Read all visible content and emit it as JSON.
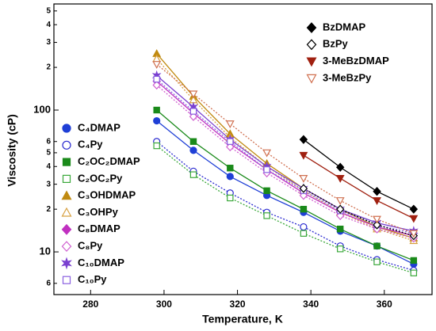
{
  "chart_data": {
    "type": "scatter",
    "xlabel": "Temperature, K",
    "ylabel": "Viscosity (cP)",
    "xlim": [
      270,
      373
    ],
    "xticks": [
      280,
      300,
      320,
      340,
      360
    ],
    "ylim": [
      5,
      560
    ],
    "log_y": true,
    "yticks": [
      {
        "value": 6,
        "label": "6"
      },
      10,
      {
        "value": 20,
        "label": "2"
      },
      {
        "value": 30,
        "label": "3"
      },
      {
        "value": 40,
        "label": "4"
      },
      {
        "value": 50,
        "label": "5"
      },
      {
        "value": 60,
        "label": "6"
      },
      100,
      {
        "value": 200,
        "label": "2"
      },
      {
        "value": 300,
        "label": "3"
      },
      {
        "value": 400,
        "label": "4"
      },
      {
        "value": 500,
        "label": "5"
      }
    ],
    "x": [
      298,
      308,
      318,
      328,
      338,
      348,
      358,
      368
    ],
    "series": [
      {
        "name": "C₄DMAP",
        "color": "#1f3fd6",
        "marker": "circle",
        "filled": true,
        "values": [
          84,
          52,
          34,
          25,
          19,
          14,
          11,
          8.2
        ]
      },
      {
        "name": "C₄Py",
        "color": "#2a2ad0",
        "marker": "circle",
        "filled": false,
        "values": [
          60,
          37,
          26,
          19,
          15,
          11,
          8.8,
          7.4
        ]
      },
      {
        "name": "C₂OC₂DMAP",
        "color": "#1a8a1a",
        "marker": "square",
        "filled": true,
        "values": [
          100,
          60,
          39,
          27,
          20,
          14.5,
          11,
          8.7
        ]
      },
      {
        "name": "C₂OC₂Py",
        "color": "#3aa83a",
        "marker": "square",
        "filled": false,
        "values": [
          56,
          35,
          24,
          18,
          13.5,
          10.5,
          8.5,
          7.1
        ]
      },
      {
        "name": "C₃OHDMAP",
        "color": "#c08a10",
        "marker": "triangle",
        "filled": true,
        "values": [
          250,
          125,
          68,
          42,
          28,
          20,
          15,
          12.5
        ]
      },
      {
        "name": "C₃OHPy",
        "color": "#d8a040",
        "marker": "triangle",
        "filled": false,
        "values": [
          230,
          118,
          64,
          40,
          27,
          19,
          14.5,
          12
        ]
      },
      {
        "name": "C₈DMAP",
        "color": "#c030c0",
        "marker": "diamond",
        "filled": true,
        "values": [
          160,
          95,
          58,
          38,
          26,
          19,
          15,
          13
        ]
      },
      {
        "name": "C₈Py",
        "color": "#d060d0",
        "marker": "diamond",
        "filled": false,
        "values": [
          150,
          90,
          55,
          36,
          25,
          18,
          14.5,
          12.5
        ]
      },
      {
        "name": "C₁₀DMAP",
        "color": "#7a40d0",
        "marker": "star",
        "filled": true,
        "values": [
          175,
          105,
          62,
          40,
          28,
          20,
          16,
          14
        ]
      },
      {
        "name": "C₁₀Py",
        "color": "#8a60e0",
        "marker": "square",
        "filled": false,
        "values": [
          165,
          98,
          60,
          38,
          27,
          19.5,
          15.5,
          13.5
        ]
      },
      {
        "name": "BzDMAP",
        "color": "#000000",
        "marker": "diamond",
        "filled": true,
        "values": [
          null,
          null,
          null,
          null,
          62,
          39.5,
          26.7,
          20
        ]
      },
      {
        "name": "BzPy",
        "color": "#000000",
        "marker": "diamond",
        "filled": false,
        "values": [
          null,
          null,
          null,
          null,
          28,
          20,
          15.5,
          13
        ]
      },
      {
        "name": "3-MeBzDMAP",
        "color": "#a02010",
        "marker": "triangle-down",
        "filled": true,
        "values": [
          null,
          null,
          null,
          null,
          48,
          33,
          23,
          17.2
        ]
      },
      {
        "name": "3-MeBzPy",
        "color": "#d07050",
        "marker": "triangle-down",
        "filled": false,
        "values": [
          210,
          130,
          80,
          50,
          33,
          23,
          17,
          13.5
        ]
      }
    ]
  }
}
